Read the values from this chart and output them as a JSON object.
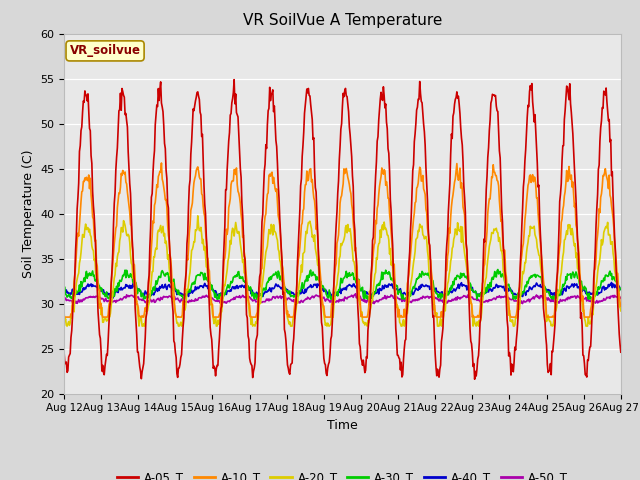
{
  "title": "VR SoilVue A Temperature",
  "xlabel": "Time",
  "ylabel": "Soil Temperature (C)",
  "ylim": [
    20,
    60
  ],
  "yticks": [
    20,
    25,
    30,
    35,
    40,
    45,
    50,
    55,
    60
  ],
  "x_start_day": 12,
  "x_end_day": 27,
  "x_tick_days": [
    12,
    13,
    14,
    15,
    16,
    17,
    18,
    19,
    20,
    21,
    22,
    23,
    24,
    25,
    26,
    27
  ],
  "series_order_plot": [
    "A-50_T",
    "A-40_T",
    "A-30_T",
    "A-20_T",
    "A-10_T",
    "A-05_T"
  ],
  "series_order_legend": [
    "A-05_T",
    "A-10_T",
    "A-20_T",
    "A-30_T",
    "A-40_T",
    "A-50_T"
  ],
  "series": {
    "A-05_T": {
      "color": "#cc0000"
    },
    "A-10_T": {
      "color": "#ff8800"
    },
    "A-20_T": {
      "color": "#ddcc00"
    },
    "A-30_T": {
      "color": "#00cc00"
    },
    "A-40_T": {
      "color": "#0000cc"
    },
    "A-50_T": {
      "color": "#aa00aa"
    }
  },
  "annotation_text": "VR_soilvue",
  "annotation_color": "#880000",
  "annotation_bg": "#ffffcc",
  "annotation_border": "#aa8800",
  "fig_bg_color": "#d8d8d8",
  "plot_bg_color": "#e8e8e8",
  "grid_color": "#ffffff",
  "linewidth": 1.2,
  "figwidth": 6.4,
  "figheight": 4.8,
  "dpi": 100
}
